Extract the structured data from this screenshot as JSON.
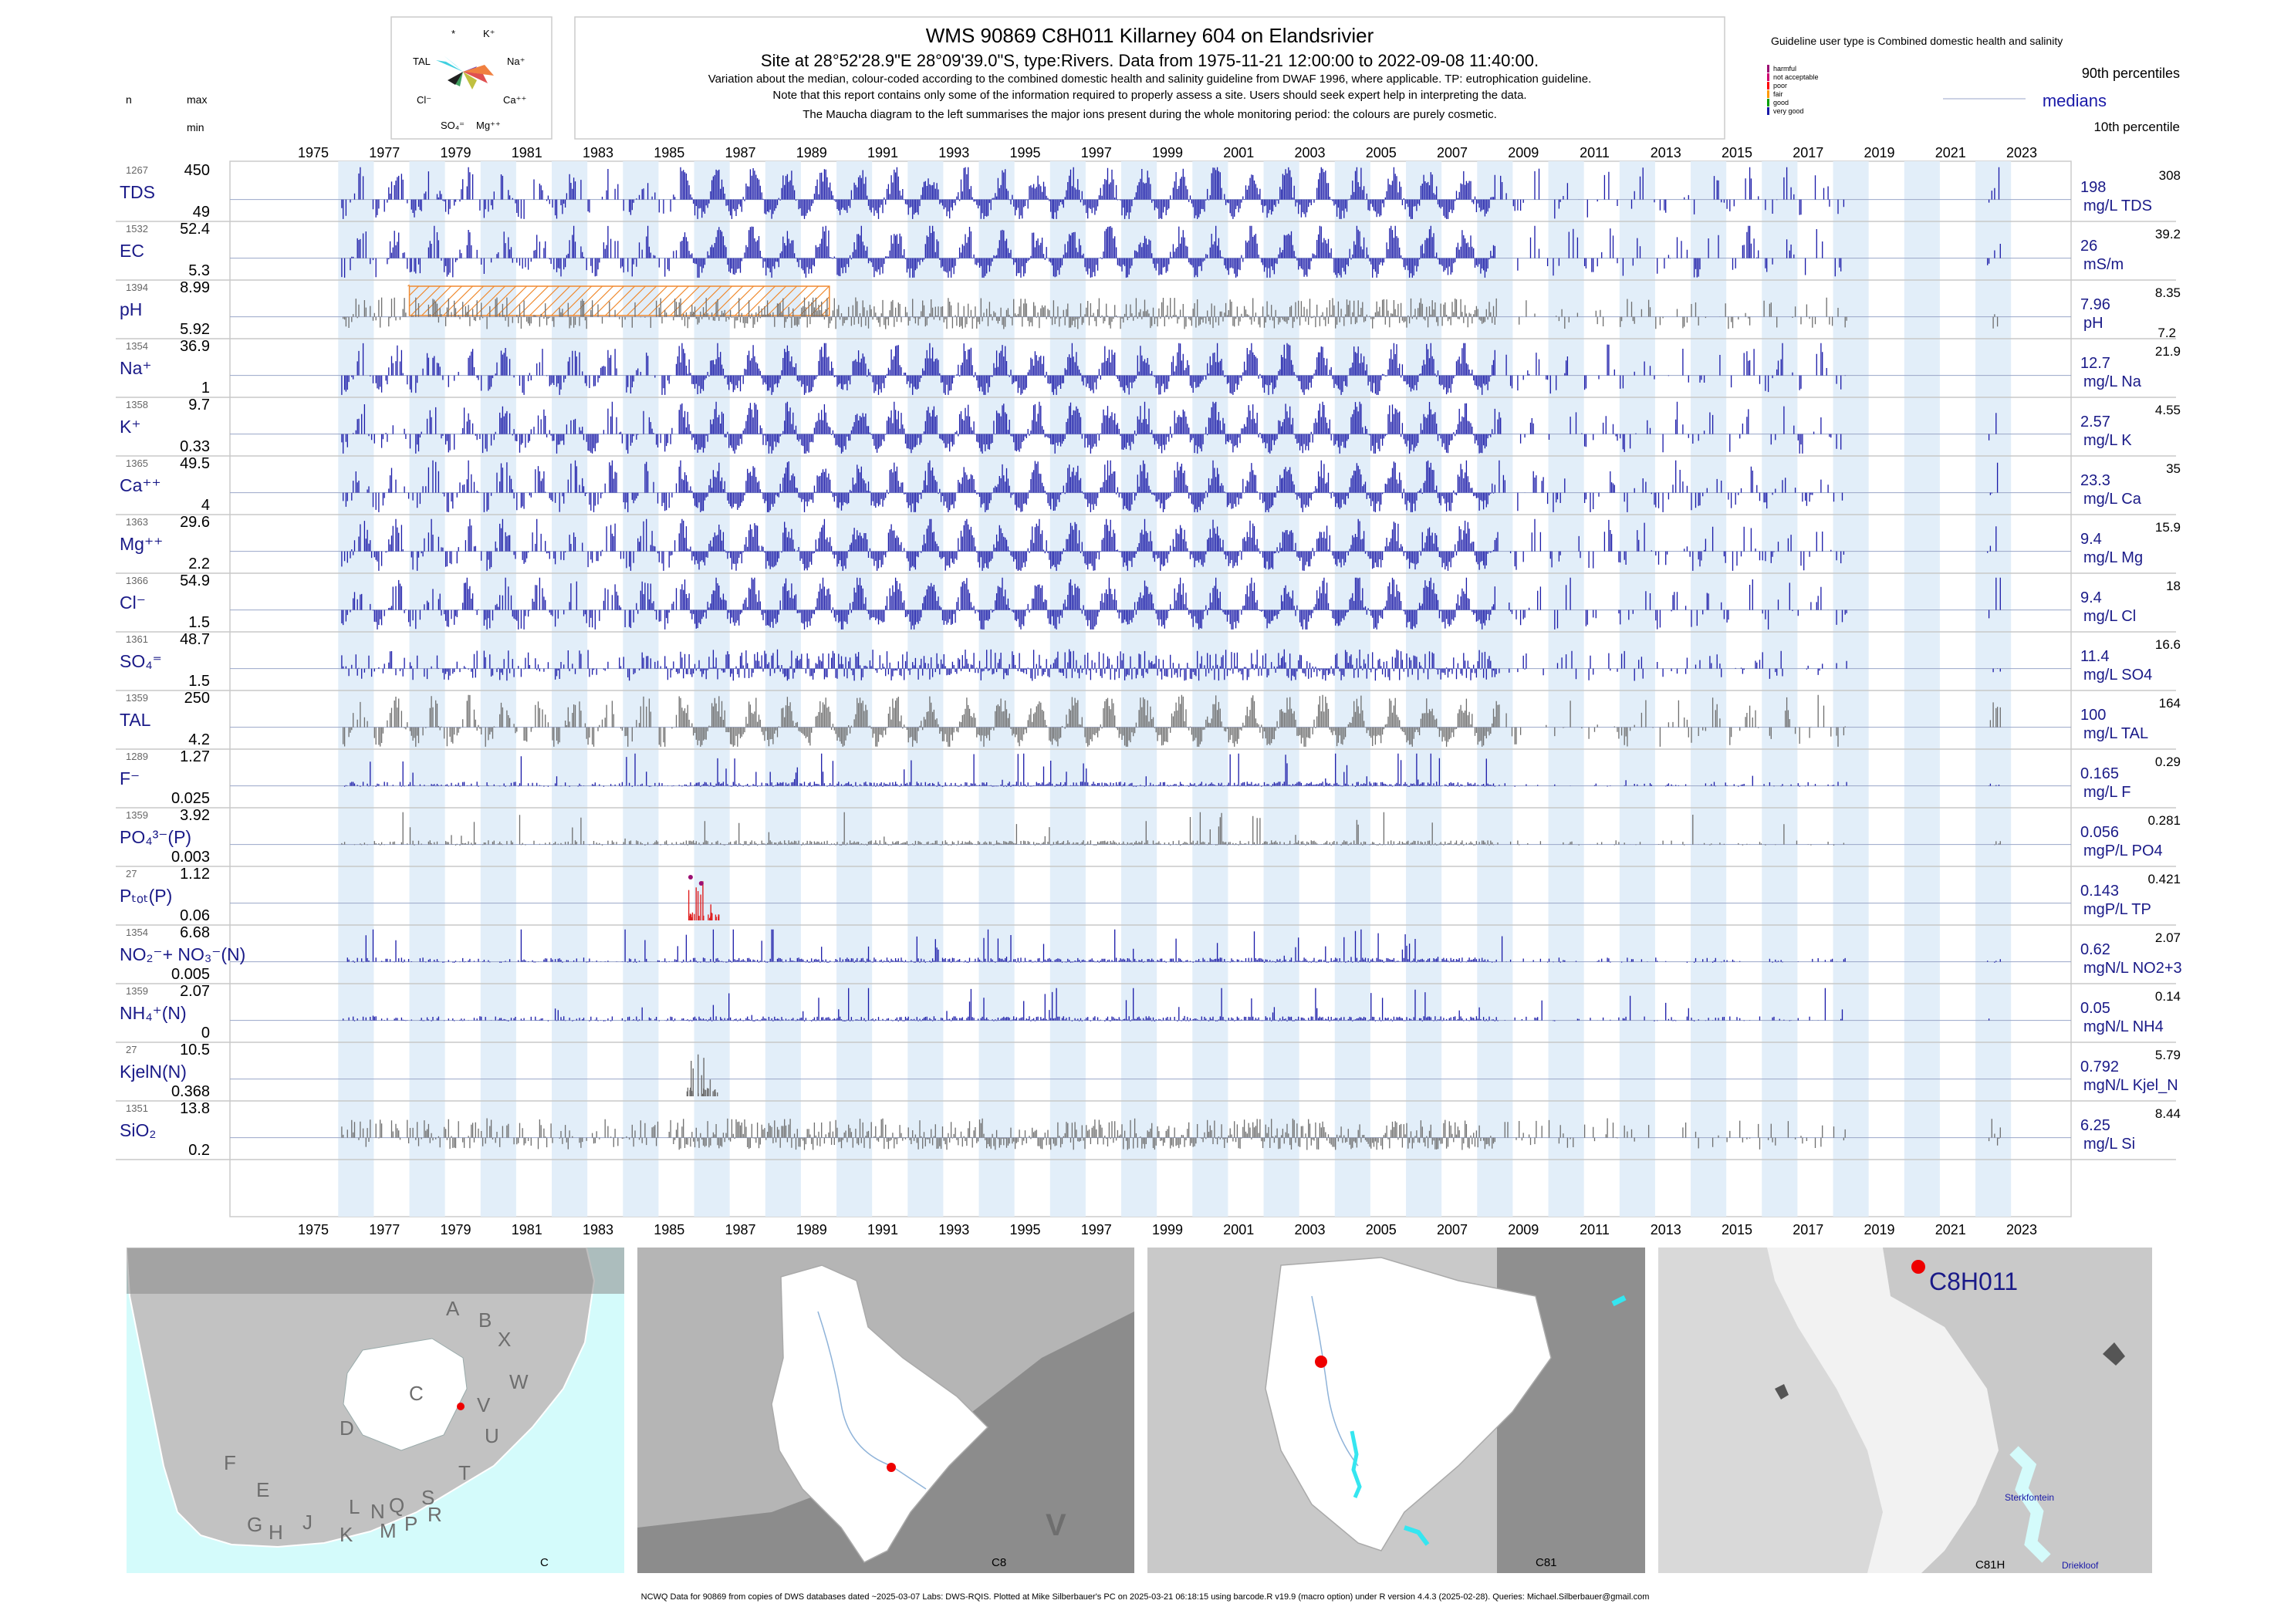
{
  "header": {
    "title": "WMS 90869 C8H011 Killarney 604 on Elandsrivier",
    "line1": "Site at 28°52'28.9\"E 28°09'39.0\"S, type:Rivers.  Data from 1975-11-21 12:00:00 to 2022-09-08 11:40:00.",
    "line2": "Variation about the median,  colour-coded according to the combined domestic health and salinity guideline from DWAF 1996, where applicable. TP: eutrophication guideline.",
    "line3": "Note that this report contains only some of the information required to properly assess a site. Users should seek expert help in interpreting the data.",
    "line4": "The Maucha diagram to the left summarises the major ions present during the whole monitoring period: the colours are purely cosmetic."
  },
  "maucha": {
    "labels": {
      "star": "*",
      "k": "K⁺",
      "tal": "TAL",
      "na": "Na⁺",
      "cl": "Cl⁻",
      "ca": "Ca⁺⁺",
      "so4": "SO₄⁼",
      "mg": "Mg⁺⁺"
    }
  },
  "legend": {
    "guideline_title": "Guideline user type is Combined domestic health and salinity",
    "classes": [
      {
        "label": "harmful",
        "color": "#9c0f73"
      },
      {
        "label": "not acceptable",
        "color": "#d0006f"
      },
      {
        "label": "poor",
        "color": "#ff0000"
      },
      {
        "label": "fair",
        "color": "#ff9900"
      },
      {
        "label": "good",
        "color": "#00a000"
      },
      {
        "label": "very good",
        "color": "#1a1aa8"
      }
    ],
    "p90_label": "90th percentiles",
    "median_label": "medians",
    "p10_label": "10th percentile"
  },
  "left_header": {
    "n": "n",
    "max": "max",
    "min": "min"
  },
  "chart_data": {
    "type": "bar",
    "x_axis": {
      "range": [
        1974.5,
        2023.5
      ],
      "tick_years": [
        1975,
        1977,
        1979,
        1981,
        1983,
        1985,
        1987,
        1989,
        1991,
        1993,
        1995,
        1997,
        1999,
        2001,
        2003,
        2005,
        2007,
        2009,
        2011,
        2013,
        2015,
        2017,
        2019,
        2021,
        2023
      ]
    },
    "guideline_color": "#1a1aa8",
    "nograde_color": "#6e6e6e",
    "panels": [
      {
        "label": "TDS",
        "n": "1267",
        "max": "450",
        "min": "49",
        "median": "198",
        "p90": "308",
        "unit": "mg/L TDS",
        "style": "blue",
        "pattern": "seasonal"
      },
      {
        "label": "EC",
        "n": "1532",
        "max": "52.4",
        "min": "5.3",
        "median": "26",
        "p90": "39.2",
        "unit": "mS/m",
        "style": "blue",
        "pattern": "seasonal"
      },
      {
        "label": "pH",
        "n": "1394",
        "max": "8.99",
        "min": "5.92",
        "median": "7.96",
        "p90": "8.35",
        "p10": "7.2",
        "unit": "pH",
        "style": "gray",
        "pattern": "noisy",
        "hatch_years": [
          1977.7,
          1989.5
        ]
      },
      {
        "label": "Na⁺",
        "n": "1354",
        "max": "36.9",
        "min": "1",
        "median": "12.7",
        "p90": "21.9",
        "unit": "mg/L Na",
        "style": "blue",
        "pattern": "seasonal"
      },
      {
        "label": "K⁺",
        "n": "1358",
        "max": "9.7",
        "min": "0.33",
        "median": "2.57",
        "p90": "4.55",
        "unit": "mg/L K",
        "style": "blue",
        "pattern": "seasonal"
      },
      {
        "label": "Ca⁺⁺",
        "n": "1365",
        "max": "49.5",
        "min": "4",
        "median": "23.3",
        "p90": "35",
        "unit": "mg/L Ca",
        "style": "blue",
        "pattern": "seasonal"
      },
      {
        "label": "Mg⁺⁺",
        "n": "1363",
        "max": "29.6",
        "min": "2.2",
        "median": "9.4",
        "p90": "15.9",
        "unit": "mg/L Mg",
        "style": "blue",
        "pattern": "seasonal"
      },
      {
        "label": "Cl⁻",
        "n": "1366",
        "max": "54.9",
        "min": "1.5",
        "median": "9.4",
        "p90": "18",
        "unit": "mg/L Cl",
        "style": "blue",
        "pattern": "seasonal"
      },
      {
        "label": "SO₄⁼",
        "n": "1361",
        "max": "48.7",
        "min": "1.5",
        "median": "11.4",
        "p90": "16.6",
        "unit": "mg/L SO4",
        "style": "blue",
        "pattern": "noisy"
      },
      {
        "label": "TAL",
        "n": "1359",
        "max": "250",
        "min": "4.2",
        "median": "100",
        "p90": "164",
        "unit": "mg/L TAL",
        "style": "gray",
        "pattern": "seasonal"
      },
      {
        "label": "F⁻",
        "n": "1289",
        "max": "1.27",
        "min": "0.025",
        "median": "0.165",
        "p90": "0.29",
        "unit": "mg/L F",
        "style": "blue",
        "pattern": "low"
      },
      {
        "label": "PO₄³⁻(P)",
        "n": "1359",
        "max": "3.92",
        "min": "0.003",
        "median": "0.056",
        "p90": "0.281",
        "unit": "mgP/L PO4",
        "style": "gray",
        "pattern": "low"
      },
      {
        "label": "Pₜₒₜ(P)",
        "n": "27",
        "max": "1.12",
        "min": "0.06",
        "median": "0.143",
        "p90": "0.421",
        "unit": "mgP/L TP",
        "style": "tp",
        "pattern": "tp"
      },
      {
        "label": "NO₂⁻+ NO₃⁻(N)",
        "n": "1354",
        "max": "6.68",
        "min": "0.005",
        "median": "0.62",
        "p90": "2.07",
        "unit": "mgN/L NO2+3",
        "style": "blue",
        "pattern": "low"
      },
      {
        "label": "NH₄⁺(N)",
        "n": "1359",
        "max": "2.07",
        "min": "0",
        "median": "0.05",
        "p90": "0.14",
        "unit": "mgN/L NH4",
        "style": "blue",
        "pattern": "low"
      },
      {
        "label": "KjelN(N)",
        "n": "27",
        "max": "10.5",
        "min": "0.368",
        "median": "0.792",
        "p90": "5.79",
        "unit": "mgN/L Kjel_N",
        "style": "gray",
        "pattern": "tp"
      },
      {
        "label": "SiO₂",
        "n": "1351",
        "max": "13.8",
        "min": "0.2",
        "median": "6.25",
        "p90": "8.44",
        "unit": "mg/L Si",
        "style": "gray",
        "pattern": "noisy"
      }
    ]
  },
  "maps": [
    {
      "caption": "C",
      "region_letters": [
        "A",
        "B",
        "X",
        "W",
        "C",
        "V",
        "D",
        "U",
        "T",
        "F",
        "E",
        "G",
        "H",
        "J",
        "K",
        "L",
        "M",
        "N",
        "P",
        "Q",
        "R",
        "S"
      ]
    },
    {
      "caption": "C8",
      "big_letter": "V"
    },
    {
      "caption": "C81"
    },
    {
      "caption": "C81H",
      "site_label": "C8H011",
      "lake1": "Sterkfontein",
      "lake2": "Driekloof"
    }
  ],
  "footer": "NCWQ Data for 90869 from copies of DWS databases dated ~2025-03-07 Labs: DWS-RQIS. Plotted at Mike Silberbauer's PC on 2025-03-21 06:18:15 using barcode.R v19.9 (macro option) under R version 4.4.3 (2025-02-28). Queries: Michael.Silberbauer@gmail.com"
}
